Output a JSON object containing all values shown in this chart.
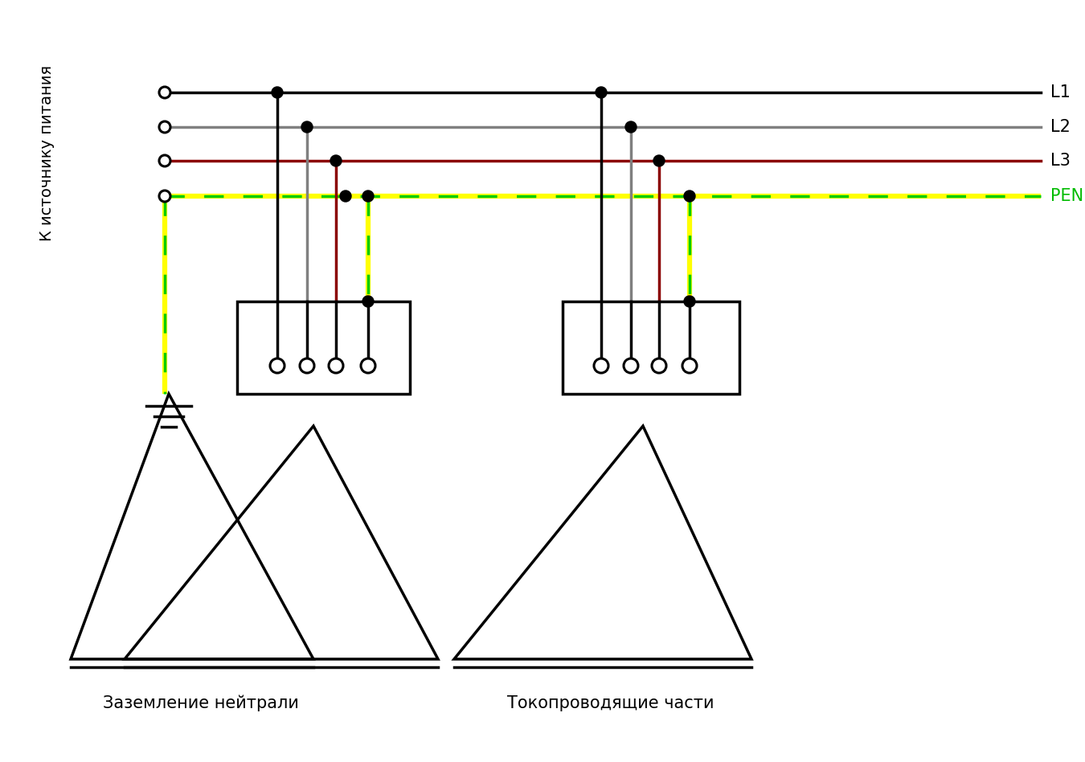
{
  "bg_color": "#ffffff",
  "left_label": "К источнику питания",
  "label_L1": "L1",
  "label_L2": "L2",
  "label_L3": "L3",
  "label_PEN": "PEN",
  "label_neutral": "Заземление нейтрали",
  "label_conductive": "Токопроводящие части",
  "color_L1": "#000000",
  "color_L2": "#808080",
  "color_L3": "#8b0000",
  "color_PEN_yellow": "#ffff00",
  "color_PEN_green": "#00cc00",
  "lw": 2.5,
  "fig_w": 13.5,
  "fig_h": 9.48
}
